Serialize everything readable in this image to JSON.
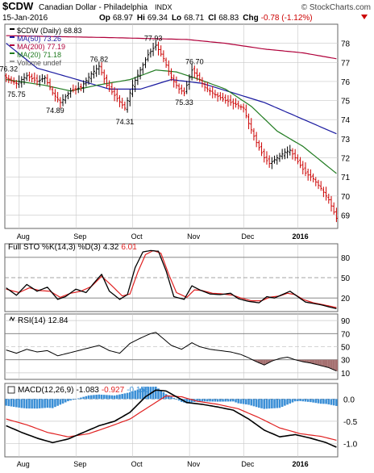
{
  "header": {
    "symbol": "$CDW",
    "name": "Canadian Dollar - Philadelphia",
    "exchange": "INDX",
    "brand": "© StockCharts.com",
    "date": "15-Jan-2016",
    "ohlc": {
      "op_label": "Op",
      "op": "68.97",
      "hi_label": "Hi",
      "hi": "69.34",
      "lo_label": "Lo",
      "lo": "68.71",
      "cl_label": "Cl",
      "cl": "68.83",
      "chg_label": "Chg",
      "chg": "-0.78 (-1.12%)"
    }
  },
  "colors": {
    "price": "#000000",
    "ma50": "#1a1aa0",
    "ma200": "#b0003a",
    "ma20": "#1f7a1f",
    "sto_k": "#000000",
    "sto_d": "#e02020",
    "rsi": "#000000",
    "macd": "#000000",
    "macd_signal": "#e02020",
    "hist": "#3b8fd6",
    "rsi_fill": "#a57070",
    "grid": "#c8c8c8",
    "chg": "#cc0000"
  },
  "chart_data": [
    {
      "type": "ohlc",
      "panel": "price",
      "legend": [
        {
          "key": "price",
          "label": "$CDW (Daily)",
          "value": "68.83"
        },
        {
          "key": "ma50",
          "label": "MA(50)",
          "value": "73.26"
        },
        {
          "key": "ma200",
          "label": "MA(200)",
          "value": "77.19"
        },
        {
          "key": "ma20",
          "label": "MA(20)",
          "value": "71.18"
        },
        {
          "key": "volume",
          "label": "Volume undef",
          "value": ""
        }
      ],
      "ylim": [
        68.3,
        79.0
      ],
      "yticks": [
        69,
        70,
        71,
        72,
        73,
        74,
        75,
        76,
        77,
        78
      ],
      "x_labels": [
        {
          "label": "Aug",
          "idx": 6
        },
        {
          "label": "Sep",
          "idx": 28
        },
        {
          "label": "Oct",
          "idx": 50
        },
        {
          "label": "Nov",
          "idx": 72
        },
        {
          "label": "Dec",
          "idx": 93
        },
        {
          "label": "2016",
          "idx": 114
        }
      ],
      "n": 129,
      "close_anchors": [
        [
          0,
          76.2
        ],
        [
          4,
          75.9
        ],
        [
          8,
          76.3
        ],
        [
          12,
          76.0
        ],
        [
          15,
          76.2
        ],
        [
          18,
          75.4
        ],
        [
          21,
          74.9
        ],
        [
          25,
          75.5
        ],
        [
          29,
          75.7
        ],
        [
          33,
          76.4
        ],
        [
          36,
          76.8
        ],
        [
          39,
          75.8
        ],
        [
          43,
          75.1
        ],
        [
          46,
          74.6
        ],
        [
          49,
          75.8
        ],
        [
          52,
          76.6
        ],
        [
          55,
          77.4
        ],
        [
          58,
          77.9
        ],
        [
          61,
          77.2
        ],
        [
          64,
          76.2
        ],
        [
          67,
          75.6
        ],
        [
          69,
          75.4
        ],
        [
          72,
          76.6
        ],
        [
          74,
          76.3
        ],
        [
          77,
          75.7
        ],
        [
          81,
          75.3
        ],
        [
          85,
          75.0
        ],
        [
          89,
          74.8
        ],
        [
          92,
          74.6
        ],
        [
          94,
          73.8
        ],
        [
          97,
          72.8
        ],
        [
          100,
          72.0
        ],
        [
          102,
          71.7
        ],
        [
          105,
          72.0
        ],
        [
          108,
          72.3
        ],
        [
          110,
          72.4
        ],
        [
          113,
          71.8
        ],
        [
          116,
          71.2
        ],
        [
          119,
          70.9
        ],
        [
          122,
          70.4
        ],
        [
          125,
          69.8
        ],
        [
          128,
          68.83
        ]
      ],
      "ma50_anchors": [
        [
          0,
          78.0
        ],
        [
          12,
          76.7
        ],
        [
          25,
          76.2
        ],
        [
          40,
          75.6
        ],
        [
          52,
          75.6
        ],
        [
          64,
          76.1
        ],
        [
          76,
          75.9
        ],
        [
          88,
          75.4
        ],
        [
          100,
          74.9
        ],
        [
          112,
          74.2
        ],
        [
          128,
          73.26
        ]
      ],
      "ma200_anchors": [
        [
          0,
          78.4
        ],
        [
          40,
          78.3
        ],
        [
          70,
          78.2
        ],
        [
          85,
          78.0
        ],
        [
          100,
          77.7
        ],
        [
          115,
          77.5
        ],
        [
          128,
          77.19
        ]
      ],
      "ma20_anchors": [
        [
          0,
          76.1
        ],
        [
          15,
          75.8
        ],
        [
          25,
          75.5
        ],
        [
          35,
          75.8
        ],
        [
          48,
          76.1
        ],
        [
          58,
          76.6
        ],
        [
          66,
          76.5
        ],
        [
          75,
          76.1
        ],
        [
          85,
          75.6
        ],
        [
          95,
          74.7
        ],
        [
          105,
          73.4
        ],
        [
          115,
          72.6
        ],
        [
          128,
          71.18
        ]
      ],
      "annotations": [
        {
          "label": "76.32",
          "idx": 1,
          "value": 76.32
        },
        {
          "label": "75.75",
          "idx": 4,
          "value": 75.75
        },
        {
          "label": "74.89",
          "idx": 19,
          "value": 74.89
        },
        {
          "label": "76.82",
          "idx": 36,
          "value": 76.82
        },
        {
          "label": "74.31",
          "idx": 46,
          "value": 74.31
        },
        {
          "label": "77.93",
          "idx": 57,
          "value": 77.93
        },
        {
          "label": "75.33",
          "idx": 69,
          "value": 75.33
        },
        {
          "label": "76.70",
          "idx": 73,
          "value": 76.7
        }
      ]
    },
    {
      "type": "line",
      "panel": "stochastic",
      "label": "Full STO %K(14,3) %D(3)",
      "k_value": "4.32",
      "d_value": "6.01",
      "ylim": [
        0,
        100
      ],
      "yticks": [
        20,
        50,
        80
      ],
      "k_anchors": [
        [
          0,
          35
        ],
        [
          4,
          24
        ],
        [
          8,
          40
        ],
        [
          12,
          30
        ],
        [
          16,
          36
        ],
        [
          20,
          18
        ],
        [
          23,
          22
        ],
        [
          27,
          33
        ],
        [
          31,
          28
        ],
        [
          34,
          42
        ],
        [
          37,
          55
        ],
        [
          40,
          30
        ],
        [
          44,
          18
        ],
        [
          47,
          25
        ],
        [
          50,
          65
        ],
        [
          53,
          88
        ],
        [
          56,
          90
        ],
        [
          59,
          89
        ],
        [
          62,
          60
        ],
        [
          65,
          22
        ],
        [
          69,
          18
        ],
        [
          72,
          38
        ],
        [
          75,
          32
        ],
        [
          79,
          26
        ],
        [
          83,
          25
        ],
        [
          87,
          27
        ],
        [
          90,
          19
        ],
        [
          94,
          15
        ],
        [
          98,
          13
        ],
        [
          101,
          22
        ],
        [
          104,
          20
        ],
        [
          107,
          25
        ],
        [
          110,
          30
        ],
        [
          113,
          22
        ],
        [
          116,
          14
        ],
        [
          119,
          12
        ],
        [
          122,
          10
        ],
        [
          125,
          7
        ],
        [
          128,
          4.32
        ]
      ],
      "d_anchors": [
        [
          0,
          33
        ],
        [
          5,
          28
        ],
        [
          9,
          35
        ],
        [
          13,
          31
        ],
        [
          17,
          30
        ],
        [
          21,
          21
        ],
        [
          25,
          27
        ],
        [
          29,
          30
        ],
        [
          33,
          37
        ],
        [
          37,
          52
        ],
        [
          41,
          38
        ],
        [
          45,
          23
        ],
        [
          48,
          26
        ],
        [
          51,
          58
        ],
        [
          54,
          84
        ],
        [
          57,
          90
        ],
        [
          60,
          86
        ],
        [
          63,
          55
        ],
        [
          66,
          28
        ],
        [
          70,
          21
        ],
        [
          73,
          32
        ],
        [
          76,
          31
        ],
        [
          80,
          27
        ],
        [
          84,
          26
        ],
        [
          88,
          24
        ],
        [
          91,
          20
        ],
        [
          95,
          16
        ],
        [
          99,
          16
        ],
        [
          102,
          21
        ],
        [
          106,
          23
        ],
        [
          109,
          27
        ],
        [
          112,
          25
        ],
        [
          115,
          18
        ],
        [
          119,
          13
        ],
        [
          123,
          10
        ],
        [
          128,
          6.01
        ]
      ]
    },
    {
      "type": "line",
      "panel": "rsi",
      "label": "RSI(14)",
      "value": "12.84",
      "ylim": [
        0,
        100
      ],
      "yticks": [
        10,
        30,
        50,
        70,
        90
      ],
      "anchors": [
        [
          0,
          45
        ],
        [
          4,
          40
        ],
        [
          8,
          46
        ],
        [
          12,
          42
        ],
        [
          16,
          44
        ],
        [
          20,
          36
        ],
        [
          24,
          40
        ],
        [
          28,
          44
        ],
        [
          32,
          48
        ],
        [
          36,
          52
        ],
        [
          40,
          44
        ],
        [
          44,
          40
        ],
        [
          48,
          55
        ],
        [
          52,
          63
        ],
        [
          56,
          70
        ],
        [
          58,
          72
        ],
        [
          61,
          62
        ],
        [
          64,
          52
        ],
        [
          68,
          46
        ],
        [
          72,
          56
        ],
        [
          75,
          50
        ],
        [
          79,
          46
        ],
        [
          83,
          44
        ],
        [
          87,
          42
        ],
        [
          91,
          38
        ],
        [
          94,
          33
        ],
        [
          97,
          27
        ],
        [
          100,
          22
        ],
        [
          103,
          28
        ],
        [
          106,
          32
        ],
        [
          109,
          34
        ],
        [
          112,
          30
        ],
        [
          115,
          27
        ],
        [
          118,
          25
        ],
        [
          121,
          22
        ],
        [
          125,
          18
        ],
        [
          128,
          12.84
        ]
      ]
    },
    {
      "type": "line",
      "panel": "macd",
      "label": "MACD(12,26,9)",
      "macd_value": "-1.083",
      "signal_value": "-0.927",
      "hist_value": "-0.156",
      "ylim": [
        -1.3,
        0.35
      ],
      "yticks": [
        -1.0,
        -0.5,
        0.0
      ],
      "macd_anchors": [
        [
          0,
          -0.6
        ],
        [
          6,
          -0.75
        ],
        [
          12,
          -0.88
        ],
        [
          18,
          -0.98
        ],
        [
          24,
          -0.9
        ],
        [
          30,
          -0.75
        ],
        [
          36,
          -0.6
        ],
        [
          42,
          -0.5
        ],
        [
          48,
          -0.3
        ],
        [
          54,
          0.05
        ],
        [
          58,
          0.2
        ],
        [
          62,
          0.18
        ],
        [
          66,
          0.05
        ],
        [
          70,
          -0.08
        ],
        [
          76,
          -0.12
        ],
        [
          82,
          -0.18
        ],
        [
          88,
          -0.25
        ],
        [
          94,
          -0.45
        ],
        [
          100,
          -0.7
        ],
        [
          106,
          -0.85
        ],
        [
          112,
          -0.8
        ],
        [
          118,
          -0.88
        ],
        [
          124,
          -0.98
        ],
        [
          128,
          -1.083
        ]
      ],
      "signal_anchors": [
        [
          0,
          -0.45
        ],
        [
          8,
          -0.58
        ],
        [
          16,
          -0.75
        ],
        [
          24,
          -0.85
        ],
        [
          32,
          -0.78
        ],
        [
          40,
          -0.62
        ],
        [
          48,
          -0.45
        ],
        [
          56,
          -0.15
        ],
        [
          62,
          0.07
        ],
        [
          68,
          0.05
        ],
        [
          74,
          -0.05
        ],
        [
          82,
          -0.12
        ],
        [
          90,
          -0.22
        ],
        [
          98,
          -0.42
        ],
        [
          106,
          -0.65
        ],
        [
          114,
          -0.78
        ],
        [
          122,
          -0.84
        ],
        [
          128,
          -0.927
        ]
      ]
    }
  ]
}
